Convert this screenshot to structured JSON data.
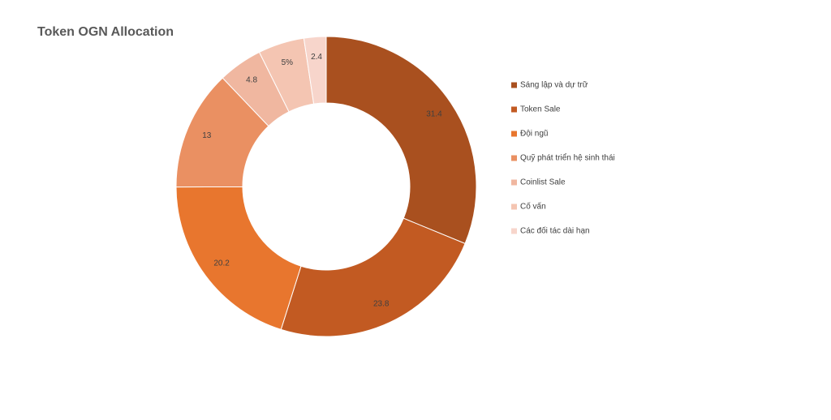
{
  "chart_data": {
    "type": "pie",
    "title": "Token OGN Allocation",
    "categories": [
      "Sáng lập và dự trữ",
      "Token Sale",
      "Đội ngũ",
      "Quỹ phát triển hệ sinh thái",
      "Coinlist Sale",
      "Cố vấn",
      "Các đối tác dài hạn"
    ],
    "values": [
      31.4,
      23.8,
      20.2,
      13,
      4.8,
      5,
      2.4
    ],
    "value_labels": [
      "31.4",
      "23.8",
      "20.2",
      "13",
      "4.8",
      "5%",
      "2.4"
    ],
    "colors": [
      "#a9501f",
      "#c25a22",
      "#e8762e",
      "#ea9062",
      "#f0b7a0",
      "#f4c5b2",
      "#f7d5cb"
    ],
    "legend": "right"
  }
}
